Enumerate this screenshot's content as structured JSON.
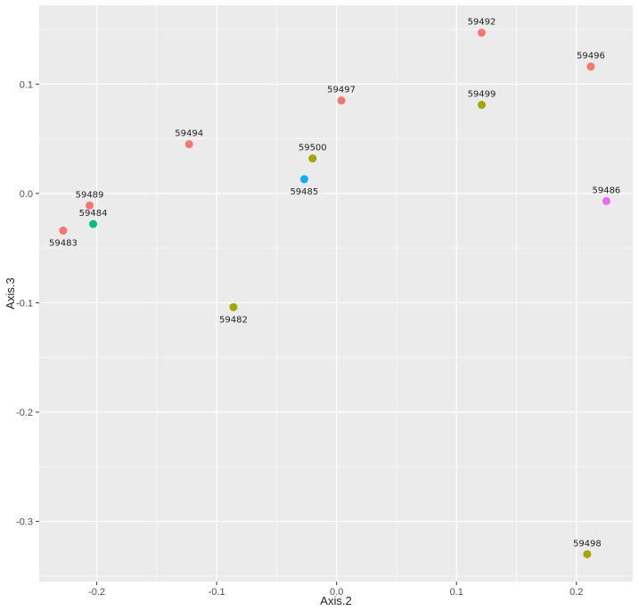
{
  "chart_data": {
    "type": "scatter",
    "xlabel": "Axis.2",
    "ylabel": "Axis.3",
    "xlim": [
      -0.248,
      0.247
    ],
    "ylim": [
      -0.355,
      0.172
    ],
    "x_ticks": [
      -0.2,
      -0.1,
      0.0,
      0.1,
      0.2
    ],
    "x_tick_labels": [
      "-0.2",
      "-0.1",
      "0.0",
      "0.1",
      "0.2"
    ],
    "y_ticks": [
      -0.3,
      -0.2,
      -0.1,
      0.0,
      0.1
    ],
    "y_tick_labels": [
      "-0.3",
      "-0.2",
      "-0.1",
      "0.0",
      "0.1"
    ],
    "grid": true,
    "background": "#ebebeb",
    "grid_color": "#ffffff",
    "points": [
      {
        "label": "59492",
        "x": 0.121,
        "y": 0.147,
        "color": "#f8766d",
        "label_pos": "above"
      },
      {
        "label": "59496",
        "x": 0.212,
        "y": 0.116,
        "color": "#f8766d",
        "label_pos": "above"
      },
      {
        "label": "59497",
        "x": 0.004,
        "y": 0.085,
        "color": "#f8766d",
        "label_pos": "above"
      },
      {
        "label": "59499",
        "x": 0.121,
        "y": 0.081,
        "color": "#a3a500",
        "label_pos": "above"
      },
      {
        "label": "59494",
        "x": -0.123,
        "y": 0.045,
        "color": "#f8766d",
        "label_pos": "above"
      },
      {
        "label": "59500",
        "x": -0.02,
        "y": 0.032,
        "color": "#a3a500",
        "label_pos": "above"
      },
      {
        "label": "59485",
        "x": -0.027,
        "y": 0.013,
        "color": "#00b0f6",
        "label_pos": "below"
      },
      {
        "label": "59486",
        "x": 0.225,
        "y": -0.007,
        "color": "#e76bf3",
        "label_pos": "above"
      },
      {
        "label": "59489",
        "x": -0.206,
        "y": -0.011,
        "color": "#f8766d",
        "label_pos": "above"
      },
      {
        "label": "59484",
        "x": -0.203,
        "y": -0.028,
        "color": "#00bf7d",
        "label_pos": "above"
      },
      {
        "label": "59483",
        "x": -0.228,
        "y": -0.034,
        "color": "#f8766d",
        "label_pos": "below"
      },
      {
        "label": "59482",
        "x": -0.086,
        "y": -0.104,
        "color": "#a3a500",
        "label_pos": "below"
      },
      {
        "label": "59498",
        "x": 0.209,
        "y": -0.33,
        "color": "#a3a500",
        "label_pos": "above"
      }
    ]
  }
}
